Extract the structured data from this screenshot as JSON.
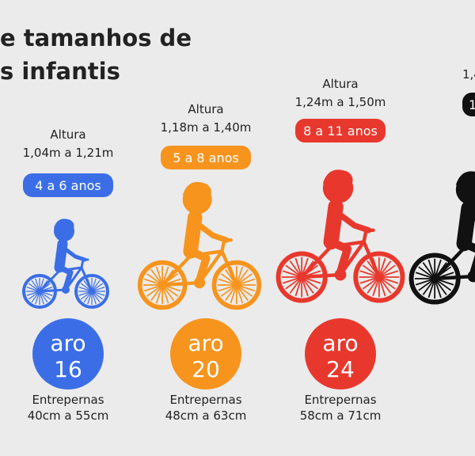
{
  "title": [
    "e tamanhos de",
    "s infantis"
  ],
  "columns": [
    {
      "height_label": "Altura",
      "height": "1,04m a 1,21m",
      "age": "4 a 6 anos",
      "rim_word": "aro",
      "rim": "16",
      "inseam_label": "Entrepernas",
      "inseam": "40cm a 55cm",
      "color": "#3b6ee6"
    },
    {
      "height_label": "Altura",
      "height": "1,18m a 1,40m",
      "age": "5 a 8 anos",
      "rim_word": "aro",
      "rim": "20",
      "inseam_label": "Entrepernas",
      "inseam": "48cm a 63cm",
      "color": "#f7941d"
    },
    {
      "height_label": "Altura",
      "height": "1,24m a 1,50m",
      "age": "8 a 11 anos",
      "rim_word": "aro",
      "rim": "24",
      "inseam_label": "Entrepernas",
      "inseam": "58cm a 71cm",
      "color": "#e8382d"
    }
  ],
  "partial": {
    "height": "1,4",
    "age": "1",
    "color": "#111111"
  }
}
